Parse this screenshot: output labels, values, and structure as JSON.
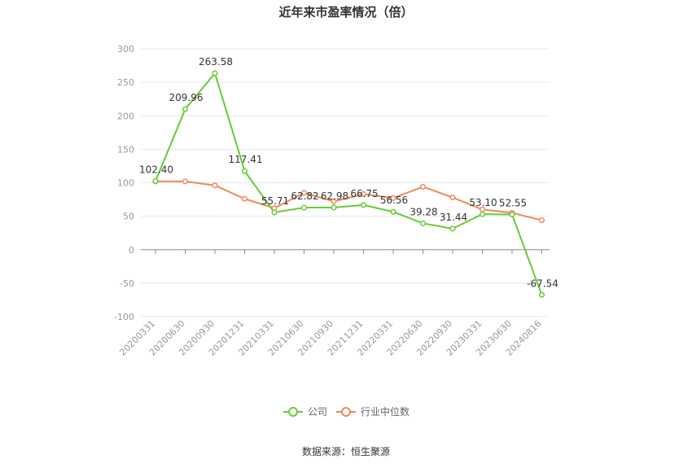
{
  "chart_data": {
    "type": "line",
    "title": "近年来市盈率情况（倍）",
    "source": "数据来源：恒生聚源",
    "x": [
      "20200331",
      "20200630",
      "20200930",
      "20201231",
      "20210331",
      "20210630",
      "20210930",
      "20211231",
      "20220331",
      "20220630",
      "20220930",
      "20230331",
      "20230630",
      "20240816"
    ],
    "ylim": [
      -100,
      300
    ],
    "yticks": [
      -100,
      -50,
      0,
      50,
      100,
      150,
      200,
      250,
      300
    ],
    "grid": true,
    "legend_position": "bottom",
    "series": [
      {
        "name": "公司",
        "color": "#66cc33",
        "values": [
          102.4,
          209.96,
          263.58,
          117.41,
          55.71,
          62.82,
          62.98,
          66.75,
          56.56,
          39.28,
          31.44,
          53.1,
          52.55,
          -67.54
        ],
        "labels": [
          "102.40",
          "209.96",
          "263.58",
          "117.41",
          "55.71",
          "62.82",
          "62.98",
          "66.75",
          "56.56",
          "39.28",
          "31.44",
          "53.10",
          "52.55",
          "-67.54"
        ]
      },
      {
        "name": "行业中位数",
        "color": "#f0885a",
        "values": [
          102,
          102,
          96,
          76,
          62,
          85,
          72,
          83,
          77,
          94,
          78,
          60,
          55,
          44
        ]
      }
    ]
  }
}
